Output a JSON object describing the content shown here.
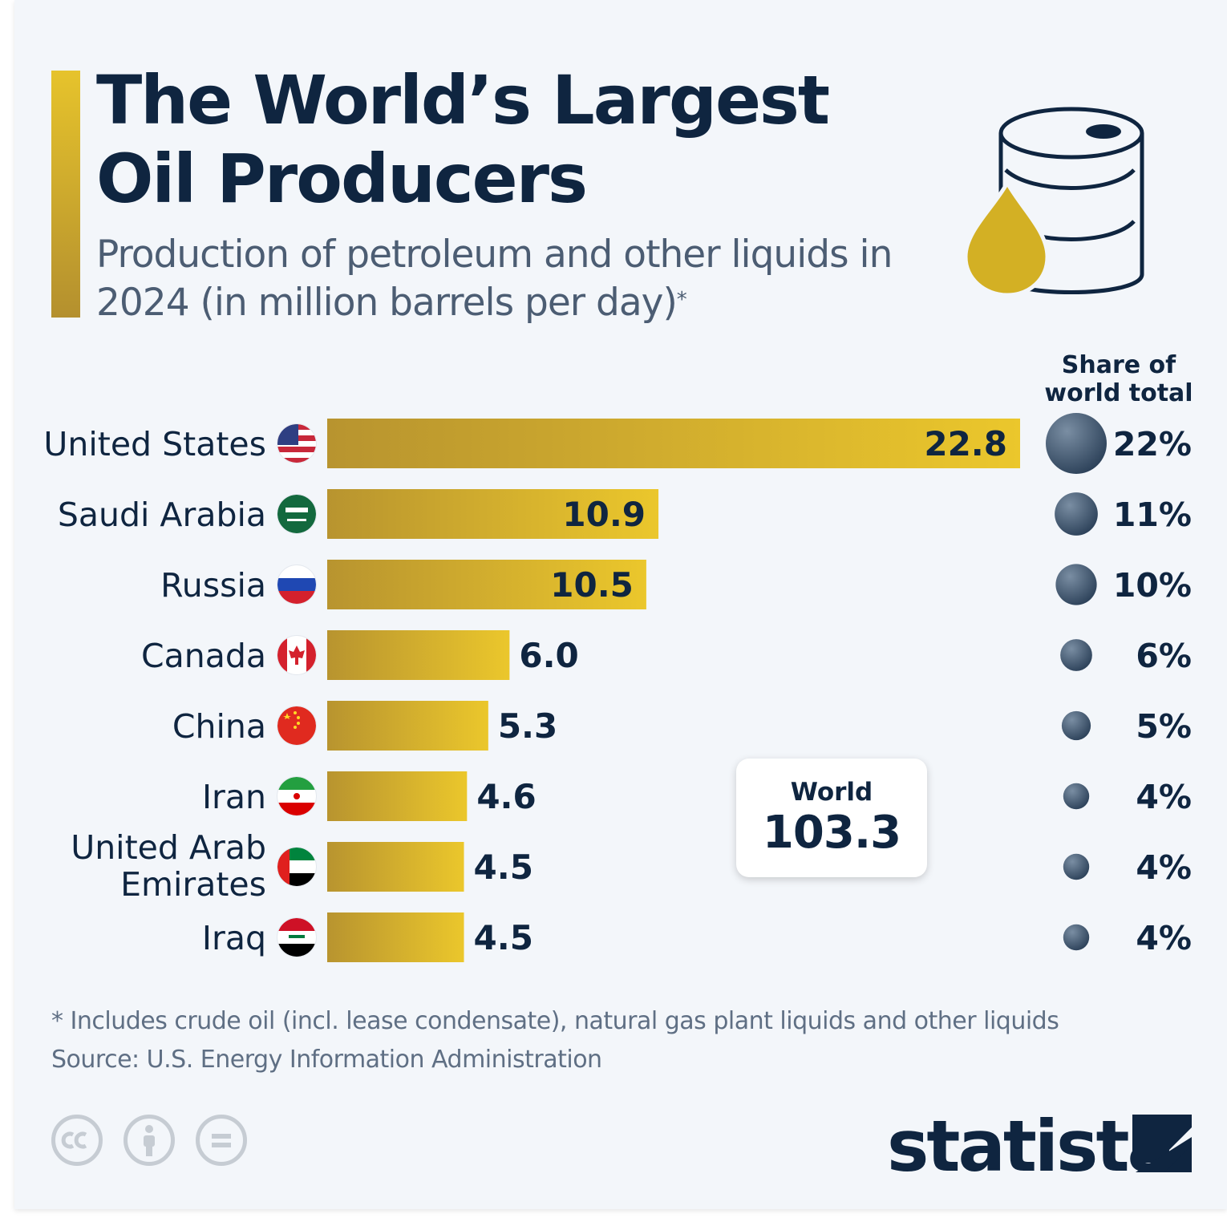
{
  "title": "The World’s Largest Oil Producers",
  "subtitle": "Production of petroleum and other liquids in 2024 (in million barrels per day)",
  "subtitle_marker": "*",
  "share_header": "Share of world total",
  "world_box": {
    "label": "World",
    "value": "103.3"
  },
  "footnote": "* Includes crude oil (incl. lease condensate), natural gas plant liquids and other liquids",
  "source": "Source: U.S. Energy Information Administration",
  "brand": "statista",
  "colors": {
    "bar_start": "#b8942f",
    "bar_end": "#ebc72c",
    "title": "#0f2540",
    "bubble": "#3e566f"
  },
  "icons": [
    "oil-barrel-icon",
    "oil-drop-icon",
    "cc-icon",
    "attribution-icon",
    "no-derivatives-icon",
    "statista-logo-icon"
  ],
  "chart_data": {
    "type": "bar",
    "orientation": "horizontal",
    "categories": [
      "United States",
      "Saudi Arabia",
      "Russia",
      "Canada",
      "China",
      "Iran",
      "United Arab Emirates",
      "Iraq"
    ],
    "series": [
      {
        "values": [
          22.8,
          10.9,
          10.5,
          6.0,
          5.3,
          4.6,
          4.5,
          4.5
        ]
      }
    ],
    "value_labels": [
      "22.8",
      "10.9",
      "10.5",
      "6.0",
      "5.3",
      "4.6",
      "4.5",
      "4.5"
    ],
    "share_of_world_total": [
      22,
      11,
      10,
      6,
      5,
      4,
      4,
      4
    ],
    "share_labels": [
      "22%",
      "11%",
      "10%",
      "6%",
      "5%",
      "4%",
      "4%",
      "4%"
    ],
    "flags": [
      "us-flag-icon",
      "saudi-arabia-flag-icon",
      "russia-flag-icon",
      "canada-flag-icon",
      "china-flag-icon",
      "iran-flag-icon",
      "uae-flag-icon",
      "iraq-flag-icon"
    ],
    "xlim": [
      0,
      22.8
    ],
    "grid": false,
    "legend": "none"
  }
}
